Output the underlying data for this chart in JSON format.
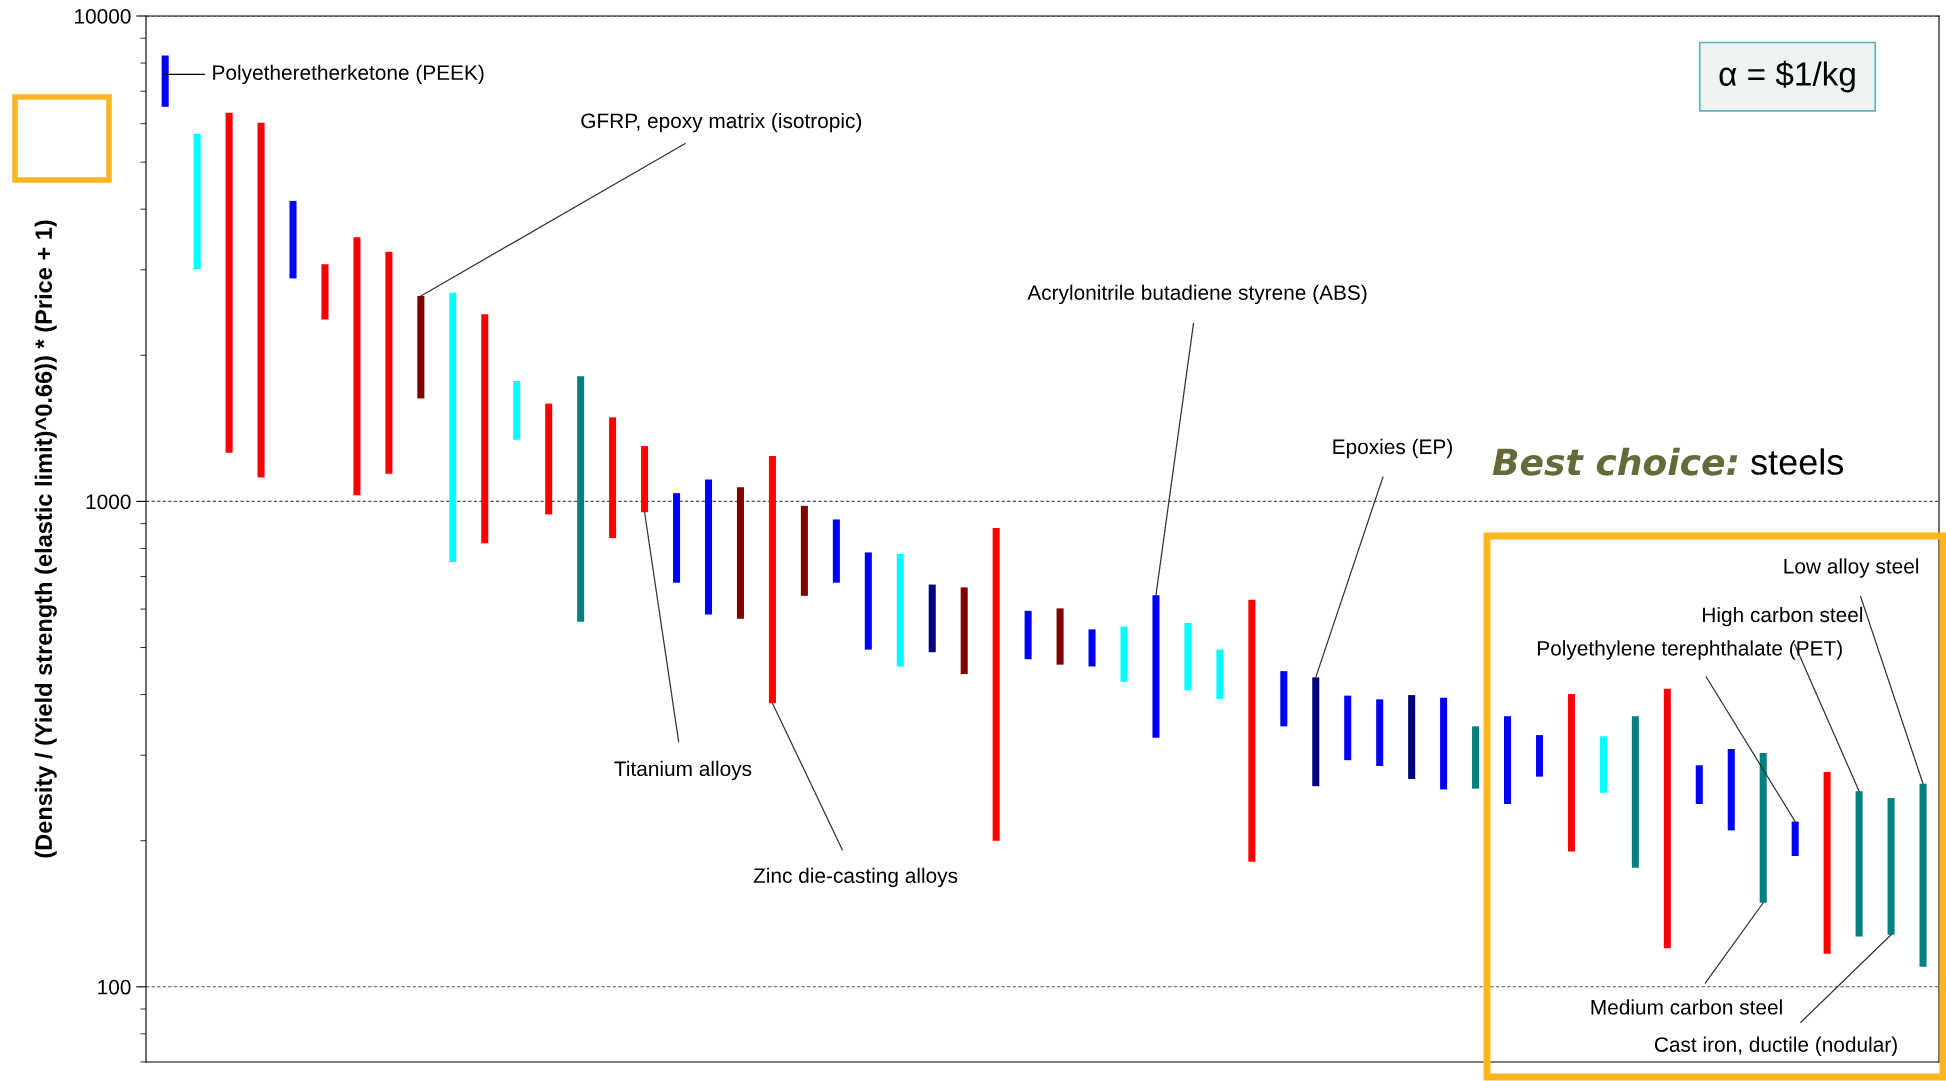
{
  "chart_data": {
    "type": "bar",
    "ylabel": "(Density / (Yield strength (elastic limit)^0.66)) * (Price + 1)",
    "categories": [
      null,
      null,
      null,
      null,
      null,
      null,
      null,
      null,
      null,
      null,
      null,
      null,
      null,
      null,
      null,
      null,
      null,
      null,
      null,
      null,
      null,
      null,
      null,
      null,
      null,
      null,
      null,
      null,
      null,
      null,
      null,
      null,
      null,
      null,
      null,
      null,
      null,
      null,
      null,
      null,
      null,
      null,
      null,
      null,
      null,
      null,
      null,
      null,
      null,
      null,
      null,
      null,
      null,
      null,
      null,
      null
    ],
    "base": [
      6500,
      3010,
      1260,
      1120,
      2880,
      2370,
      1030,
      1140,
      1630,
      750,
      820,
      1340,
      940,
      565,
      840,
      950,
      680,
      585,
      573,
      384,
      639,
      680,
      495,
      457,
      489,
      441,
      200,
      473,
      461,
      457,
      425,
      326,
      408,
      392,
      181,
      344,
      259,
      293,
      285,
      268,
      255,
      256,
      238,
      271,
      190,
      251,
      176,
      120,
      238,
      210,
      149,
      186,
      117,
      127,
      128,
      110
    ],
    "values": [
      1790,
      2710,
      5060,
      4910,
      1280,
      710,
      2470,
      2130,
      1020,
      1940,
      1610,
      430,
      650,
      1245,
      650,
      350,
      360,
      525,
      497,
      856,
      340,
      238,
      290,
      323,
      185,
      224,
      681,
      122,
      141,
      88,
      127,
      315,
      154,
      103,
      446,
      103,
      175,
      105,
      106,
      131,
      139,
      88,
      123,
      59,
      211,
      77,
      185,
      291,
      48,
      99,
      154,
      33,
      160,
      126,
      117,
      152
    ],
    "colors": [
      "#0000ff",
      "#00ffff",
      "#ff0000",
      "#ff0000",
      "#0000ff",
      "#ff0000",
      "#ff0000",
      "#ff0000",
      "#800000",
      "#00ffff",
      "#ff0000",
      "#00ffff",
      "#ff0000",
      "#008080",
      "#ff0000",
      "#ff0000",
      "#0000ff",
      "#0000ff",
      "#800000",
      "#ff0000",
      "#800000",
      "#0000ff",
      "#0000ff",
      "#00ffff",
      "#000080",
      "#800000",
      "#ff0000",
      "#0000ff",
      "#800000",
      "#0000ff",
      "#00ffff",
      "#0000ff",
      "#00ffff",
      "#00ffff",
      "#ff0000",
      "#0000ff",
      "#000080",
      "#0000ff",
      "#0000ff",
      "#000080",
      "#0000ff",
      "#008080",
      "#0000ff",
      "#0000ff",
      "#ff0000",
      "#00ffff",
      "#008080",
      "#ff0000",
      "#0000ff",
      "#0000ff",
      "#008080",
      "#0000ff",
      "#ff0000",
      "#008080",
      "#008080",
      "#008080"
    ],
    "log": "y",
    "ylim": [
      70,
      10000
    ],
    "yticks": [
      100,
      1000,
      10000
    ],
    "grid": "y",
    "tick_labels": "y",
    "annotations": [
      "Polyetheretherketone (PEEK)",
      "GFRP, epoxy matrix (isotropic)",
      "Acrylonitrile butadiene styrene (ABS)",
      "Epoxies (EP)",
      "Titanium alloys",
      "Zinc die-casting alloys",
      "Low alloy steel",
      "High carbon steel",
      "Polyethylene terephthalate (PET)",
      "Medium carbon steel",
      "Cast iron, ductile (nodular)",
      "α = $1/kg",
      "Best choice:",
      "steels"
    ]
  }
}
